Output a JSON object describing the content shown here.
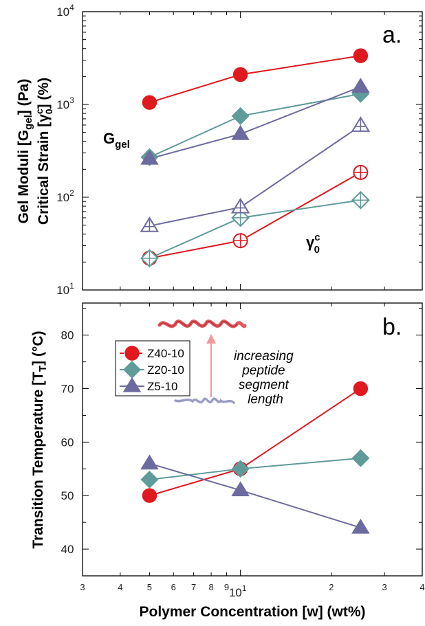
{
  "colors": {
    "z40": "#e0191f",
    "z20": "#5f9b99",
    "z5": "#6c6a9e",
    "frame": "#000000",
    "helix_long": "#e0585c",
    "helix_short": "#9b9cc6",
    "arrow": "#f09a9b"
  },
  "chart_data": [
    {
      "type": "line",
      "panel_label": "a.",
      "ylabel_line1": "Gel Moduli [G",
      "ylabel_line1_sub": "gel",
      "ylabel_line1_end": "] (Pa)",
      "ylabel_line2": "Critical Strain [γ",
      "ylabel_line2_sup": "c",
      "ylabel_line2_sub": "0",
      "ylabel_line2_end": "] (%)",
      "xscale": "log",
      "yscale": "log",
      "xlim": [
        3,
        40
      ],
      "ylim": [
        10,
        10000
      ],
      "grid": false,
      "ytick_labels": [
        {
          "base": "10",
          "exp": "1"
        },
        {
          "base": "10",
          "exp": "2"
        },
        {
          "base": "10",
          "exp": "3"
        },
        {
          "base": "10",
          "exp": "4"
        }
      ],
      "annotations": {
        "ggel_main": "G",
        "ggel_sub": "gel",
        "gamma_main": "γ",
        "gamma_sup": "c",
        "gamma_sub": "0"
      },
      "series": [
        {
          "key": "z40",
          "marker": "circle",
          "group": "G_gel",
          "x": [
            5,
            10,
            25
          ],
          "y": [
            1050,
            2100,
            3350
          ]
        },
        {
          "key": "z20",
          "marker": "diamond",
          "group": "G_gel",
          "x": [
            5,
            10,
            25
          ],
          "y": [
            270,
            750,
            1300
          ]
        },
        {
          "key": "z5",
          "marker": "triangle",
          "group": "G_gel",
          "x": [
            5,
            10,
            25
          ],
          "y": [
            260,
            480,
            1550
          ]
        },
        {
          "key": "z40",
          "marker": "circle",
          "group": "critical_strain",
          "x": [
            5,
            10,
            25
          ],
          "y": [
            22,
            34,
            185
          ]
        },
        {
          "key": "z20",
          "marker": "diamond",
          "group": "critical_strain",
          "x": [
            5,
            10,
            25
          ],
          "y": [
            22,
            60,
            93
          ]
        },
        {
          "key": "z5",
          "marker": "triangle",
          "group": "critical_strain",
          "x": [
            5,
            10,
            25
          ],
          "y": [
            49,
            78,
            590
          ]
        }
      ]
    },
    {
      "type": "line",
      "panel_label": "b.",
      "ylabel": "Transition Temperature [T",
      "ylabel_sub": "T",
      "ylabel_end": "] (°C)",
      "xlabel": "Polymer Concentration [w] (wt%)",
      "xscale": "log",
      "xlim": [
        3,
        40
      ],
      "ylim": [
        35,
        86
      ],
      "grid": false,
      "yticks": [
        "40",
        "50",
        "60",
        "70",
        "80"
      ],
      "xtick_labels": {
        "minor": [
          "3",
          "4",
          "5",
          "6",
          "7",
          "8",
          "9",
          "2",
          "3",
          "4"
        ],
        "major_base": "10",
        "major_exp": "1"
      },
      "legend": {
        "position": "upper-left",
        "items": [
          {
            "key": "z40",
            "marker": "circle",
            "label": "Z40-10"
          },
          {
            "key": "z20",
            "marker": "diamond",
            "label": "Z20-10"
          },
          {
            "key": "z5",
            "marker": "triangle",
            "label": "Z5-10"
          }
        ]
      },
      "note_lines": [
        "increasing",
        "peptide",
        "segment",
        "length"
      ],
      "series": [
        {
          "key": "z40",
          "marker": "circle",
          "name": "Z40-10",
          "x": [
            5,
            10,
            25
          ],
          "y": [
            50,
            55,
            70
          ]
        },
        {
          "key": "z20",
          "marker": "diamond",
          "name": "Z20-10",
          "x": [
            5,
            10,
            25
          ],
          "y": [
            53,
            55,
            57
          ]
        },
        {
          "key": "z5",
          "marker": "triangle",
          "name": "Z5-10",
          "x": [
            5,
            10,
            25
          ],
          "y": [
            56,
            51,
            44
          ]
        }
      ]
    }
  ]
}
